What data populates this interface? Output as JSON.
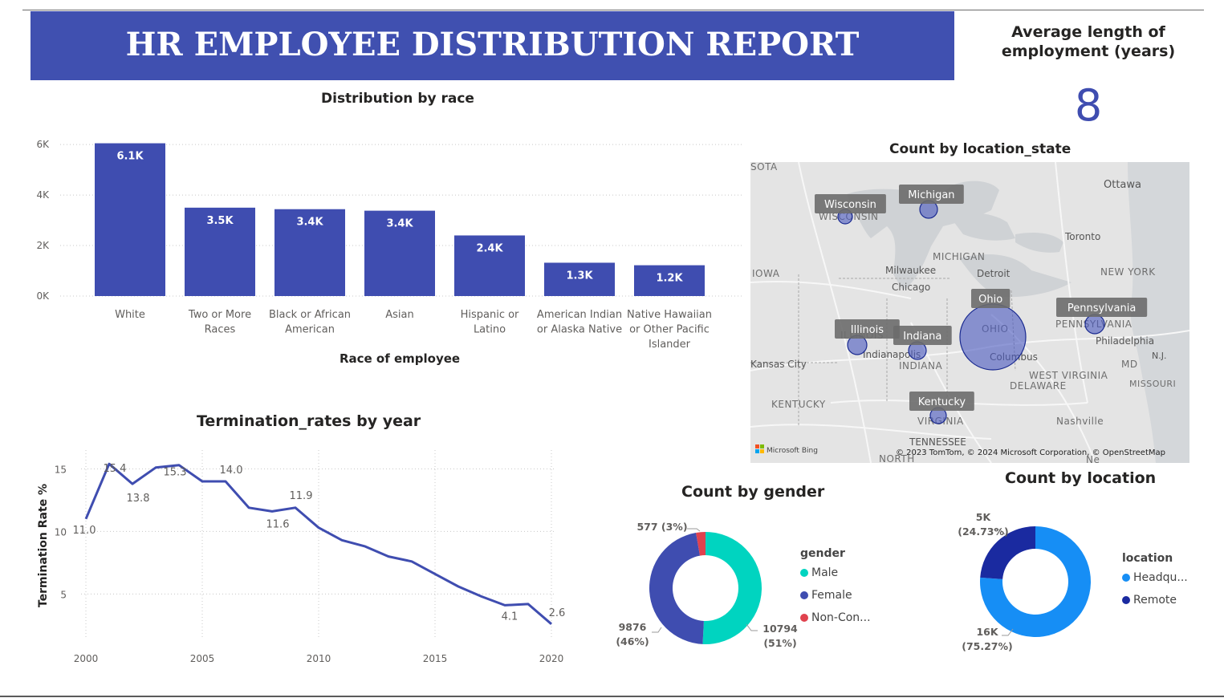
{
  "report": {
    "title": "HR EMPLOYEE DISTRIBUTION REPORT",
    "kpi_label": "Average length of employment (years)",
    "kpi_value": "8"
  },
  "colors": {
    "primary": "#3f4db0",
    "banner": "#4050b0",
    "male": "#00d4c0",
    "female": "#3f4db0",
    "nonconforming": "#e0424e",
    "headquarters": "#168ef5",
    "remote": "#1a2aa0"
  },
  "chart_data": [
    {
      "type": "bar",
      "title": "Distribution by race",
      "xlabel": "Race of employee",
      "ylabel": "",
      "categories": [
        "White",
        "Two or More Races",
        "Black or African American",
        "Asian",
        "Hispanic or Latino",
        "American Indian or Alaska Native",
        "Native Hawaiian or Other Pacific Islander"
      ],
      "category_lines": [
        [
          "White"
        ],
        [
          "Two or More",
          "Races"
        ],
        [
          "Black or African",
          "American"
        ],
        [
          "Asian"
        ],
        [
          "Hispanic or",
          "Latino"
        ],
        [
          "American Indian",
          "or Alaska Native"
        ],
        [
          "Native Hawaiian",
          "or Other Pacific",
          "Islander"
        ]
      ],
      "values": [
        6050,
        3500,
        3440,
        3380,
        2400,
        1320,
        1220
      ],
      "data_labels": [
        "6.1K",
        "3.5K",
        "3.4K",
        "3.4K",
        "2.4K",
        "1.3K",
        "1.2K"
      ],
      "yticks": [
        0,
        2000,
        4000,
        6000
      ],
      "ytick_labels": [
        "0K",
        "2K",
        "4K",
        "6K"
      ],
      "ylim": [
        0,
        6100
      ],
      "grid": true,
      "color": "#3f4db0"
    },
    {
      "type": "line",
      "title": "Termination_rates by year",
      "xlabel": "",
      "ylabel": "Termination Rate %",
      "x": [
        2000,
        2001,
        2002,
        2003,
        2004,
        2005,
        2006,
        2007,
        2008,
        2009,
        2010,
        2011,
        2012,
        2013,
        2014,
        2015,
        2016,
        2017,
        2018,
        2019,
        2020
      ],
      "y": [
        11.0,
        15.4,
        13.8,
        15.1,
        15.3,
        14.0,
        14.0,
        11.9,
        11.6,
        11.9,
        10.3,
        9.3,
        8.8,
        8.0,
        7.6,
        6.6,
        5.6,
        4.8,
        4.1,
        4.2,
        2.6
      ],
      "point_labels": [
        {
          "x": 2000,
          "y": 11.0,
          "text": "11.0"
        },
        {
          "x": 2001,
          "y": 15.4,
          "text": "15.4"
        },
        {
          "x": 2002,
          "y": 13.8,
          "text": "13.8"
        },
        {
          "x": 2004,
          "y": 15.3,
          "text": "15.3"
        },
        {
          "x": 2006,
          "y": 14.0,
          "text": "14.0"
        },
        {
          "x": 2008,
          "y": 11.6,
          "text": "11.6"
        },
        {
          "x": 2009,
          "y": 11.9,
          "text": "11.9"
        },
        {
          "x": 2018,
          "y": 4.1,
          "text": "4.1"
        },
        {
          "x": 2020,
          "y": 2.6,
          "text": "2.6"
        }
      ],
      "xticks": [
        2000,
        2005,
        2010,
        2015,
        2020
      ],
      "yticks": [
        5,
        10,
        15
      ],
      "xlim": [
        2000,
        2020
      ],
      "ylim": [
        1.5,
        16.5
      ],
      "grid": true,
      "color": "#3f4db0"
    },
    {
      "type": "pie",
      "donut": true,
      "title": "Count by gender",
      "legend_title": "gender",
      "legend_position": "right",
      "slices": [
        {
          "name": "Male",
          "legend": "Male",
          "value": 10794,
          "label_value": "10794",
          "label_pct": "(51%)",
          "color": "#00d4c0"
        },
        {
          "name": "Female",
          "legend": "Female",
          "value": 9876,
          "label_value": "9876",
          "label_pct": "(46%)",
          "color": "#3f4db0"
        },
        {
          "name": "Non-Conforming",
          "legend": "Non-Con...",
          "value": 577,
          "label_value": "577 (3%)",
          "label_pct": "",
          "color": "#e0424e"
        }
      ]
    },
    {
      "type": "pie",
      "donut": true,
      "title": "Count by location",
      "legend_title": "location",
      "legend_position": "right",
      "slices": [
        {
          "name": "Headquarters",
          "legend": "Headqu...",
          "value": 16000,
          "label_value": "16K",
          "label_pct": "(75.27%)",
          "color": "#168ef5"
        },
        {
          "name": "Remote",
          "legend": "Remote",
          "value": 5000,
          "label_value": "5K",
          "label_pct": "(24.73%)",
          "color": "#1a2aa0"
        }
      ]
    }
  ],
  "map": {
    "title": "Count by location_state",
    "attribution": "© 2023 TomTom, © 2024 Microsoft Corporation, © OpenStreetMap",
    "brand": "Microsoft Bing",
    "states": [
      "Wisconsin",
      "Michigan",
      "Ohio",
      "Illinois",
      "Indiana",
      "Pennsylvania",
      "Kentucky"
    ],
    "places": [
      "SOTA",
      "Ottawa",
      "WISCONSIN",
      "Toronto",
      "MICHIGAN",
      "Milwaukee",
      "Detroit",
      "IOWA",
      "Chicago",
      "NEW YORK",
      "OHIO",
      "PENNSYLVANIA",
      "ILLINOIS",
      "Philadelphia",
      "Indianapolis",
      "Columbus",
      "INDIANA",
      "N.J.",
      "Kansas City",
      "MD",
      "WEST VIRGINIA",
      "DELAWARE",
      "MISSOURI",
      "KENTUCKY",
      "VIRGINIA",
      "Nashville",
      "TENNESSEE",
      "NORTH",
      "Ne"
    ]
  }
}
